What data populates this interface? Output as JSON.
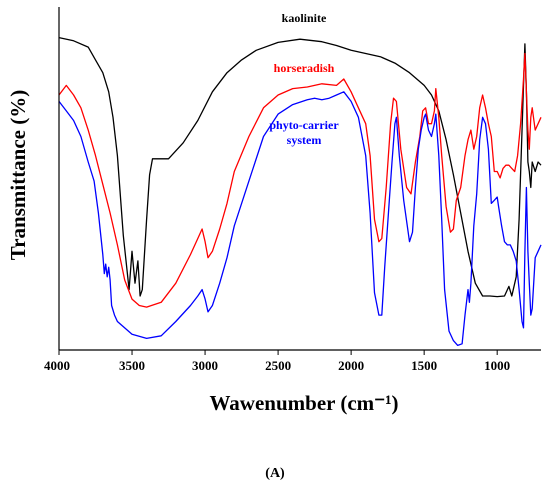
{
  "panel_label": "(A)",
  "chart_data": {
    "type": "line",
    "title": "",
    "xlabel": "Wawenumber (cm⁻¹)",
    "ylabel": "Transmittance (%)",
    "xlim": [
      4000,
      700
    ],
    "x_reversed": true,
    "ylim": [
      0,
      100
    ],
    "y_ticks_shown": false,
    "x_ticks": [
      4000,
      3500,
      3000,
      2500,
      2000,
      1500,
      1000
    ],
    "grid": false,
    "legend": "inline labels",
    "series": [
      {
        "name": "kaolinite",
        "color": "#000000",
        "points": [
          [
            4000,
            97
          ],
          [
            3900,
            96
          ],
          [
            3800,
            94
          ],
          [
            3750,
            90
          ],
          [
            3700,
            86
          ],
          [
            3660,
            80
          ],
          [
            3630,
            72
          ],
          [
            3600,
            60
          ],
          [
            3560,
            35
          ],
          [
            3520,
            18
          ],
          [
            3500,
            30
          ],
          [
            3480,
            20
          ],
          [
            3460,
            27
          ],
          [
            3445,
            16
          ],
          [
            3430,
            18
          ],
          [
            3400,
            40
          ],
          [
            3380,
            54
          ],
          [
            3360,
            59
          ],
          [
            3330,
            59
          ],
          [
            3250,
            59
          ],
          [
            3150,
            64
          ],
          [
            3050,
            71
          ],
          [
            2950,
            80
          ],
          [
            2850,
            86
          ],
          [
            2750,
            90
          ],
          [
            2650,
            93
          ],
          [
            2500,
            95.5
          ],
          [
            2350,
            96.5
          ],
          [
            2200,
            95.7
          ],
          [
            2100,
            94.5
          ],
          [
            2000,
            93
          ],
          [
            1900,
            92
          ],
          [
            1800,
            91
          ],
          [
            1700,
            89
          ],
          [
            1600,
            86
          ],
          [
            1500,
            82
          ],
          [
            1450,
            79
          ],
          [
            1400,
            74
          ],
          [
            1350,
            65
          ],
          [
            1300,
            54
          ],
          [
            1250,
            42
          ],
          [
            1200,
            30
          ],
          [
            1150,
            20
          ],
          [
            1100,
            16
          ],
          [
            1050,
            16
          ],
          [
            1000,
            15.8
          ],
          [
            950,
            16
          ],
          [
            920,
            19
          ],
          [
            900,
            16
          ],
          [
            870,
            22
          ],
          [
            850,
            40
          ],
          [
            820,
            82
          ],
          [
            810,
            95
          ],
          [
            800,
            80
          ],
          [
            790,
            58
          ],
          [
            780,
            55
          ],
          [
            770,
            50
          ],
          [
            760,
            58
          ],
          [
            740,
            55
          ],
          [
            720,
            58
          ],
          [
            700,
            57
          ]
        ]
      },
      {
        "name": "horseradish",
        "color": "#ff0000",
        "points": [
          [
            4000,
            79
          ],
          [
            3950,
            82
          ],
          [
            3900,
            79
          ],
          [
            3850,
            75
          ],
          [
            3800,
            68
          ],
          [
            3750,
            60
          ],
          [
            3700,
            51
          ],
          [
            3650,
            42
          ],
          [
            3600,
            32
          ],
          [
            3550,
            21
          ],
          [
            3500,
            15
          ],
          [
            3450,
            13
          ],
          [
            3400,
            12.5
          ],
          [
            3300,
            14
          ],
          [
            3200,
            20
          ],
          [
            3100,
            29
          ],
          [
            3050,
            34
          ],
          [
            3020,
            37
          ],
          [
            3000,
            33
          ],
          [
            2980,
            28
          ],
          [
            2950,
            30
          ],
          [
            2900,
            37
          ],
          [
            2850,
            45
          ],
          [
            2800,
            55
          ],
          [
            2700,
            66
          ],
          [
            2600,
            75
          ],
          [
            2500,
            79
          ],
          [
            2400,
            81
          ],
          [
            2300,
            81.5
          ],
          [
            2200,
            82.5
          ],
          [
            2100,
            82
          ],
          [
            2050,
            84
          ],
          [
            2000,
            80
          ],
          [
            1950,
            75
          ],
          [
            1900,
            70
          ],
          [
            1870,
            60
          ],
          [
            1840,
            40
          ],
          [
            1810,
            33
          ],
          [
            1790,
            34
          ],
          [
            1760,
            50
          ],
          [
            1730,
            70
          ],
          [
            1710,
            78
          ],
          [
            1690,
            77
          ],
          [
            1660,
            62
          ],
          [
            1620,
            50
          ],
          [
            1590,
            48
          ],
          [
            1560,
            58
          ],
          [
            1530,
            66
          ],
          [
            1510,
            74
          ],
          [
            1490,
            75
          ],
          [
            1470,
            70
          ],
          [
            1450,
            70
          ],
          [
            1430,
            74
          ],
          [
            1420,
            81
          ],
          [
            1400,
            72
          ],
          [
            1380,
            60
          ],
          [
            1350,
            44
          ],
          [
            1320,
            36
          ],
          [
            1300,
            37
          ],
          [
            1280,
            46
          ],
          [
            1250,
            50
          ],
          [
            1220,
            60
          ],
          [
            1200,
            65
          ],
          [
            1180,
            68
          ],
          [
            1160,
            62
          ],
          [
            1140,
            66
          ],
          [
            1120,
            75
          ],
          [
            1100,
            79
          ],
          [
            1080,
            75
          ],
          [
            1060,
            70
          ],
          [
            1040,
            66
          ],
          [
            1020,
            55
          ],
          [
            1000,
            55
          ],
          [
            980,
            53
          ],
          [
            960,
            56
          ],
          [
            940,
            57
          ],
          [
            920,
            57
          ],
          [
            900,
            56
          ],
          [
            880,
            55
          ],
          [
            860,
            60
          ],
          [
            840,
            70
          ],
          [
            820,
            84
          ],
          [
            810,
            92
          ],
          [
            800,
            80
          ],
          [
            790,
            68
          ],
          [
            780,
            62
          ],
          [
            770,
            72
          ],
          [
            760,
            75
          ],
          [
            740,
            68
          ],
          [
            720,
            70
          ],
          [
            700,
            72
          ]
        ]
      },
      {
        "name": "phyto-carrier\nsystem",
        "color": "#0000ff",
        "points": [
          [
            4000,
            77
          ],
          [
            3950,
            74
          ],
          [
            3900,
            71
          ],
          [
            3850,
            66
          ],
          [
            3800,
            58
          ],
          [
            3760,
            52
          ],
          [
            3730,
            42
          ],
          [
            3700,
            29
          ],
          [
            3690,
            23
          ],
          [
            3680,
            26
          ],
          [
            3670,
            22
          ],
          [
            3660,
            25
          ],
          [
            3650,
            21
          ],
          [
            3640,
            13
          ],
          [
            3620,
            10
          ],
          [
            3600,
            8
          ],
          [
            3500,
            4
          ],
          [
            3400,
            2.7
          ],
          [
            3300,
            3.5
          ],
          [
            3200,
            8
          ],
          [
            3100,
            13
          ],
          [
            3050,
            16
          ],
          [
            3020,
            18
          ],
          [
            3000,
            15
          ],
          [
            2980,
            11
          ],
          [
            2950,
            13
          ],
          [
            2900,
            20
          ],
          [
            2850,
            28
          ],
          [
            2800,
            38
          ],
          [
            2700,
            52
          ],
          [
            2600,
            66
          ],
          [
            2500,
            73
          ],
          [
            2400,
            76
          ],
          [
            2300,
            77.5
          ],
          [
            2250,
            78
          ],
          [
            2200,
            77.5
          ],
          [
            2150,
            78
          ],
          [
            2100,
            79
          ],
          [
            2050,
            80
          ],
          [
            2000,
            77
          ],
          [
            1950,
            72
          ],
          [
            1900,
            60
          ],
          [
            1870,
            42
          ],
          [
            1840,
            17
          ],
          [
            1810,
            10
          ],
          [
            1790,
            10
          ],
          [
            1770,
            25
          ],
          [
            1740,
            45
          ],
          [
            1720,
            58
          ],
          [
            1700,
            70
          ],
          [
            1690,
            72
          ],
          [
            1670,
            60
          ],
          [
            1640,
            46
          ],
          [
            1600,
            33
          ],
          [
            1580,
            36
          ],
          [
            1560,
            50
          ],
          [
            1540,
            62
          ],
          [
            1520,
            68
          ],
          [
            1500,
            72
          ],
          [
            1490,
            73
          ],
          [
            1470,
            68
          ],
          [
            1450,
            66
          ],
          [
            1430,
            70
          ],
          [
            1420,
            73
          ],
          [
            1400,
            60
          ],
          [
            1380,
            40
          ],
          [
            1360,
            18
          ],
          [
            1330,
            5
          ],
          [
            1300,
            2
          ],
          [
            1270,
            0.5
          ],
          [
            1240,
            1
          ],
          [
            1220,
            10
          ],
          [
            1200,
            18
          ],
          [
            1190,
            14
          ],
          [
            1180,
            20
          ],
          [
            1160,
            38
          ],
          [
            1140,
            48
          ],
          [
            1120,
            65
          ],
          [
            1100,
            72
          ],
          [
            1080,
            70
          ],
          [
            1060,
            62
          ],
          [
            1040,
            45
          ],
          [
            1020,
            46
          ],
          [
            1000,
            47
          ],
          [
            990,
            44
          ],
          [
            970,
            38
          ],
          [
            950,
            33
          ],
          [
            930,
            32
          ],
          [
            910,
            32
          ],
          [
            890,
            30
          ],
          [
            870,
            27
          ],
          [
            850,
            18
          ],
          [
            830,
            8
          ],
          [
            820,
            6
          ],
          [
            810,
            30
          ],
          [
            800,
            50
          ],
          [
            790,
            30
          ],
          [
            780,
            20
          ],
          [
            770,
            10
          ],
          [
            760,
            12
          ],
          [
            740,
            28
          ],
          [
            720,
            30
          ],
          [
            700,
            32
          ]
        ]
      }
    ]
  }
}
